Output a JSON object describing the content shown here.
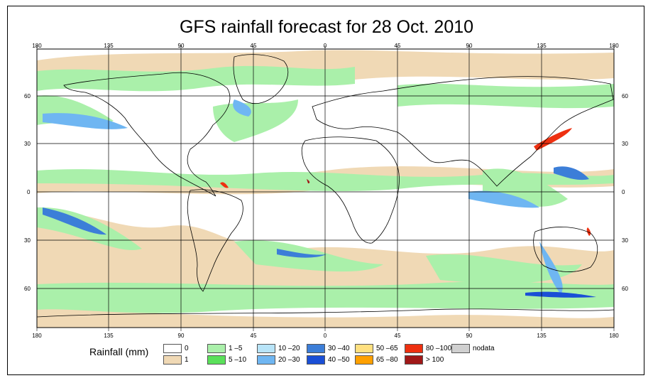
{
  "title": "GFS rainfall forecast for 28 Oct. 2010",
  "axes": {
    "lon_ticks": [
      "180",
      "135",
      "90",
      "45",
      "0",
      "45",
      "90",
      "135",
      "180"
    ],
    "lat_ticks": [
      "60",
      "30",
      "0",
      "30",
      "60"
    ]
  },
  "legend": {
    "label": "Rainfall (mm)",
    "items": [
      {
        "label": "0",
        "color": "#ffffff"
      },
      {
        "label": "1",
        "color": "#f0d9b5"
      },
      {
        "label": "1 –5",
        "color": "#aaf0aa"
      },
      {
        "label": "5 –10",
        "color": "#5ae05a"
      },
      {
        "label": "10 –20",
        "color": "#b8e4f8"
      },
      {
        "label": "20 –30",
        "color": "#6fb6f2"
      },
      {
        "label": "30 –40",
        "color": "#3c7ed8"
      },
      {
        "label": "40 –50",
        "color": "#1a4fd6"
      },
      {
        "label": "50 –65",
        "color": "#ffe080"
      },
      {
        "label": "65 –80",
        "color": "#ffa000"
      },
      {
        "label": "80 –100",
        "color": "#ee3010"
      },
      {
        "label": "> 100",
        "color": "#a01818"
      },
      {
        "label": "nodata",
        "color": "#d0d0d0"
      }
    ]
  }
}
